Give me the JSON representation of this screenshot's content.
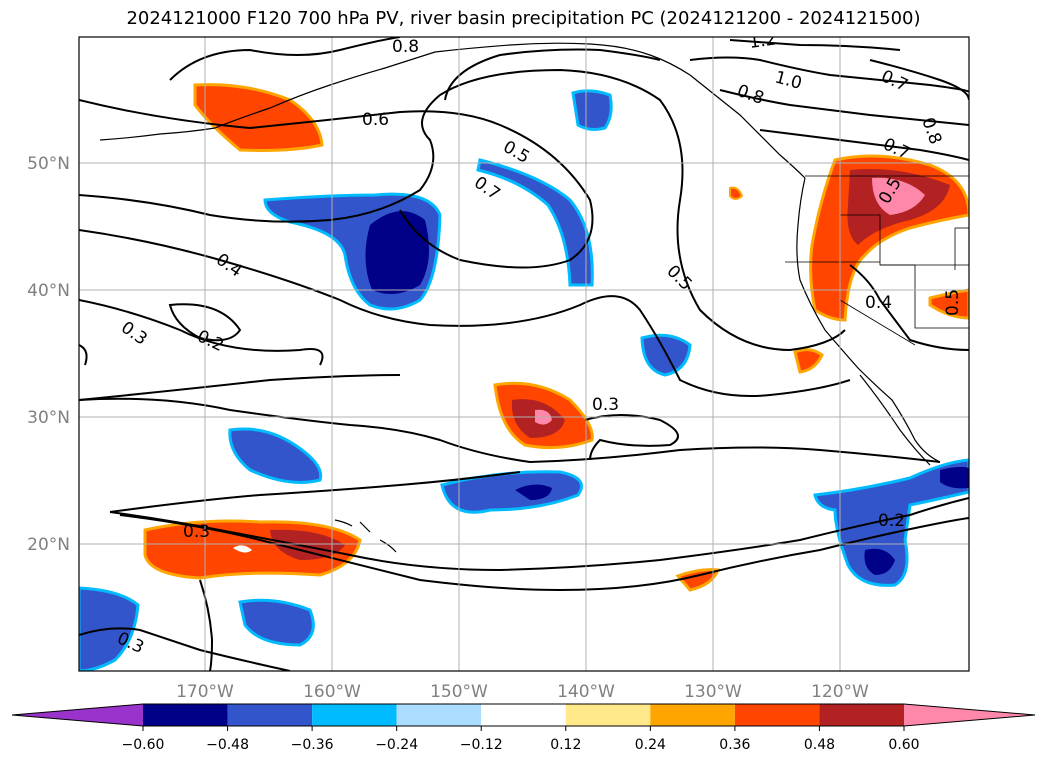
{
  "title": "2024121000 F120 700 hPa PV, river basin precipitation PC (2024121200 - 2024121500)",
  "map": {
    "lat_labels": [
      "50°N",
      "40°N",
      "30°N",
      "20°N"
    ],
    "lon_labels": [
      "170°W",
      "160°W",
      "150°W",
      "140°W",
      "130°W",
      "120°W"
    ],
    "pv_contour_labels": [
      "0.8",
      "1.2",
      "1.0",
      "0.8",
      "0.7",
      "0.8",
      "0.7",
      "0.6",
      "0.5",
      "0.7",
      "0.5",
      "0.4",
      "0.5",
      "0.5",
      "0.4",
      "0.3",
      "0.2",
      "0.3",
      "0.3",
      "0.2",
      "0.3"
    ]
  },
  "colorbar": {
    "tick_labels": [
      "−0.60",
      "−0.48",
      "−0.36",
      "−0.24",
      "−0.12",
      "0.12",
      "0.24",
      "0.36",
      "0.48",
      "0.60"
    ],
    "colors": [
      "#9933cc",
      "#000088",
      "#3355cc",
      "#00bbff",
      "#aaddff",
      "#ffffff",
      "#ffe98a",
      "#ffa500",
      "#ff4500",
      "#b22222",
      "#ff88aa"
    ]
  }
}
